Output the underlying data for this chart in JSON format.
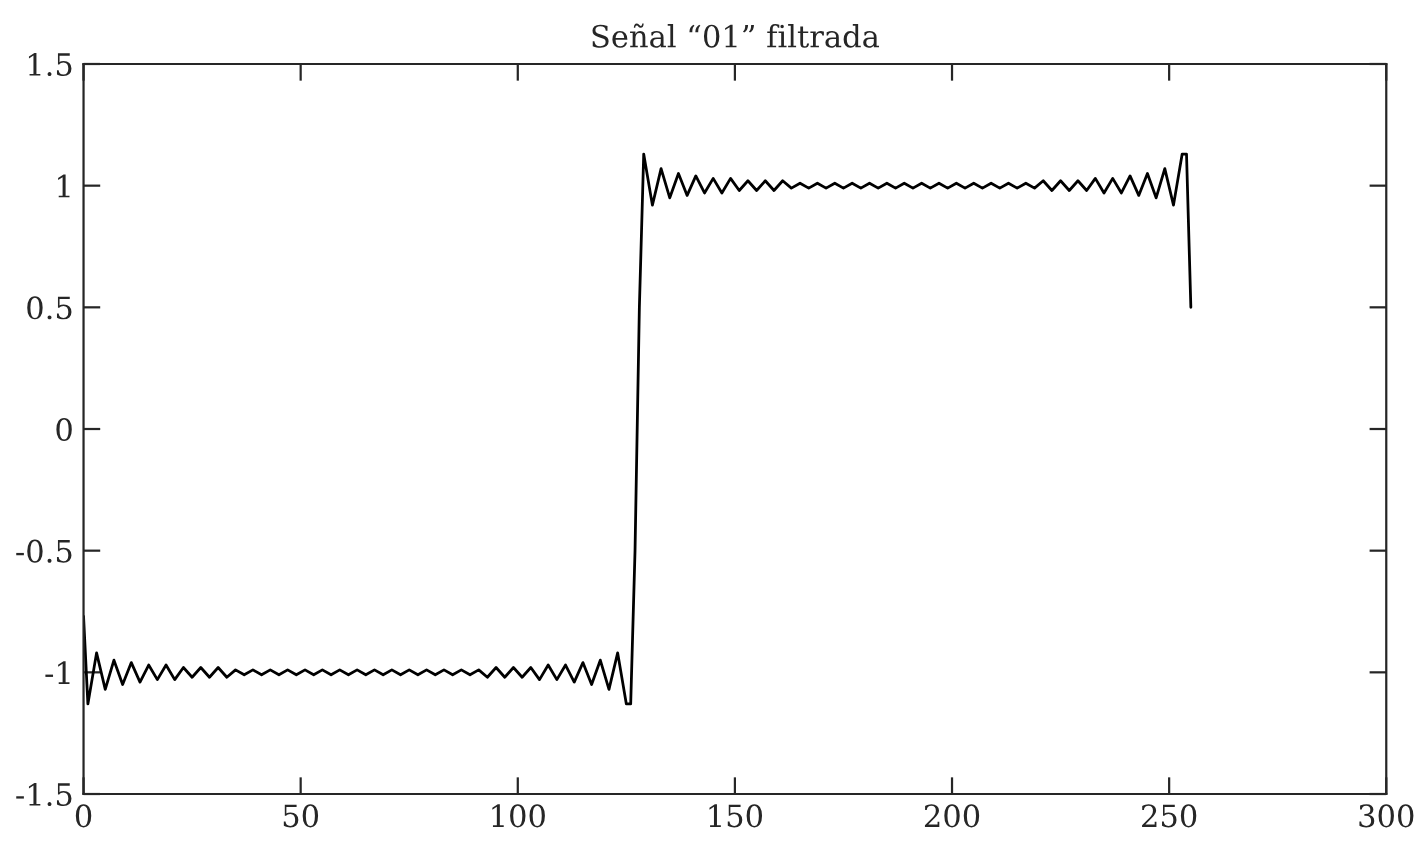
{
  "chart_data": {
    "type": "line",
    "title": "Señal “01” filtrada",
    "x": [
      0,
      1,
      3,
      5,
      7,
      9,
      11,
      13,
      15,
      17,
      19,
      21,
      23,
      25,
      27,
      29,
      31,
      33,
      35,
      37,
      39,
      41,
      43,
      45,
      47,
      49,
      51,
      53,
      55,
      57,
      59,
      61,
      63,
      65,
      67,
      69,
      71,
      73,
      75,
      77,
      79,
      81,
      83,
      85,
      87,
      89,
      91,
      93,
      95,
      97,
      99,
      101,
      103,
      105,
      107,
      109,
      111,
      113,
      115,
      117,
      119,
      121,
      123,
      125,
      126,
      127,
      128,
      129,
      131,
      133,
      135,
      137,
      139,
      141,
      143,
      145,
      147,
      149,
      151,
      153,
      155,
      157,
      159,
      161,
      163,
      165,
      167,
      169,
      171,
      173,
      175,
      177,
      179,
      181,
      183,
      185,
      187,
      189,
      191,
      193,
      195,
      197,
      199,
      201,
      203,
      205,
      207,
      209,
      211,
      213,
      215,
      217,
      219,
      221,
      223,
      225,
      227,
      229,
      231,
      233,
      235,
      237,
      239,
      241,
      243,
      245,
      247,
      249,
      251,
      253,
      254,
      255
    ],
    "values": [
      -0.77,
      -1.13,
      -0.92,
      -1.07,
      -0.95,
      -1.05,
      -0.96,
      -1.04,
      -0.97,
      -1.03,
      -0.97,
      -1.03,
      -0.98,
      -1.02,
      -0.98,
      -1.02,
      -0.98,
      -1.02,
      -0.99,
      -1.01,
      -0.99,
      -1.01,
      -0.99,
      -1.01,
      -0.99,
      -1.01,
      -0.99,
      -1.01,
      -0.99,
      -1.01,
      -0.99,
      -1.01,
      -0.99,
      -1.01,
      -0.99,
      -1.01,
      -0.99,
      -1.01,
      -0.99,
      -1.01,
      -0.99,
      -1.01,
      -0.99,
      -1.01,
      -0.99,
      -1.01,
      -0.99,
      -1.02,
      -0.98,
      -1.02,
      -0.98,
      -1.02,
      -0.98,
      -1.03,
      -0.97,
      -1.03,
      -0.97,
      -1.04,
      -0.96,
      -1.05,
      -0.95,
      -1.07,
      -0.92,
      -1.13,
      -1.13,
      -0.5,
      0.5,
      1.13,
      0.92,
      1.07,
      0.95,
      1.05,
      0.96,
      1.04,
      0.97,
      1.03,
      0.97,
      1.03,
      0.98,
      1.02,
      0.98,
      1.02,
      0.98,
      1.02,
      0.99,
      1.01,
      0.99,
      1.01,
      0.99,
      1.01,
      0.99,
      1.01,
      0.99,
      1.01,
      0.99,
      1.01,
      0.99,
      1.01,
      0.99,
      1.01,
      0.99,
      1.01,
      0.99,
      1.01,
      0.99,
      1.01,
      0.99,
      1.01,
      0.99,
      1.01,
      0.99,
      1.01,
      0.99,
      1.02,
      0.98,
      1.02,
      0.98,
      1.02,
      0.98,
      1.03,
      0.97,
      1.03,
      0.97,
      1.04,
      0.96,
      1.05,
      0.95,
      1.07,
      0.92,
      1.13,
      1.13,
      0.5
    ],
    "color": "#000000",
    "xlim": [
      0,
      300
    ],
    "ylim": [
      -1.5,
      1.5
    ],
    "xticks": [
      0,
      50,
      100,
      150,
      200,
      250,
      300
    ],
    "yticks": [
      -1.5,
      -1,
      -0.5,
      0,
      0.5,
      1,
      1.5
    ]
  }
}
